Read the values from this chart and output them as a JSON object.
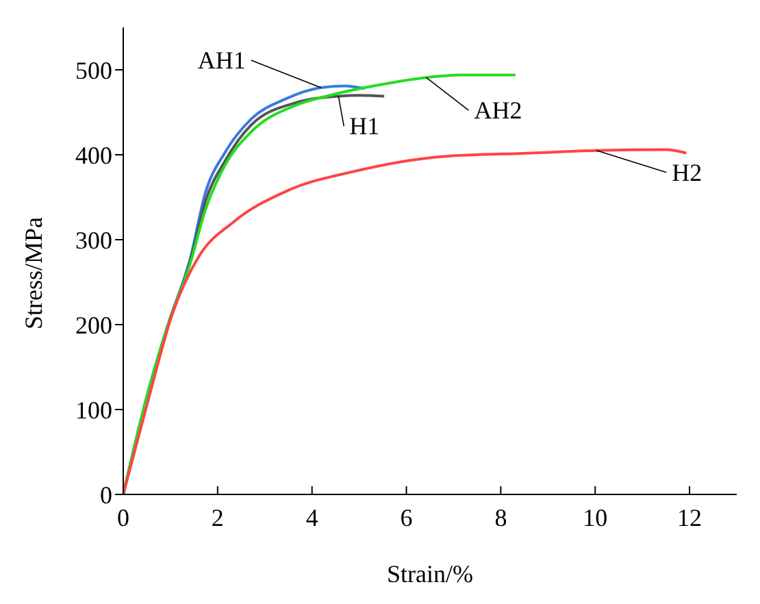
{
  "chart_data": {
    "type": "line",
    "xlabel": "Strain/%",
    "ylabel": "Stress/MPa",
    "xlim": [
      0,
      13
    ],
    "ylim": [
      0,
      550
    ],
    "xticks": [
      0,
      2,
      4,
      6,
      8,
      10,
      12
    ],
    "yticks": [
      0,
      100,
      200,
      300,
      400,
      500
    ],
    "grid": false,
    "legend": false,
    "marker": "none",
    "line_style": "solid",
    "series": [
      {
        "name": "AH1",
        "color": "#3a7ae0",
        "x": [
          0,
          0.5,
          0.95,
          1.42,
          1.74,
          2.16,
          2.71,
          3.45,
          4.19,
          4.7,
          5.12
        ],
        "values": [
          0,
          115,
          200,
          278,
          355,
          403,
          442,
          466,
          479,
          481,
          478
        ]
      },
      {
        "name": "H1",
        "color": "#555555",
        "x": [
          0,
          0.5,
          0.95,
          1.42,
          1.74,
          2.16,
          2.71,
          3.64,
          4.56,
          5.0,
          5.53
        ],
        "values": [
          0,
          115,
          200,
          275,
          345,
          393,
          435,
          461,
          469,
          470,
          469
        ]
      },
      {
        "name": "AH2",
        "color": "#22dd22",
        "x": [
          0,
          0.5,
          0.95,
          1.42,
          1.74,
          2.16,
          2.71,
          3.64,
          4.38,
          5.4,
          6.42,
          7.16,
          8.31
        ],
        "values": [
          0,
          115,
          200,
          272,
          335,
          388,
          427,
          458,
          470,
          482,
          491,
          494,
          494
        ]
      },
      {
        "name": "H2",
        "color": "#ff4444",
        "x": [
          0,
          0.5,
          1.05,
          1.6,
          2.34,
          3.45,
          4.94,
          6.79,
          8.64,
          10.03,
          11.5,
          11.93
        ],
        "values": [
          0,
          105,
          214,
          280,
          321,
          357,
          381,
          398,
          402,
          405,
          406,
          402
        ]
      }
    ]
  }
}
